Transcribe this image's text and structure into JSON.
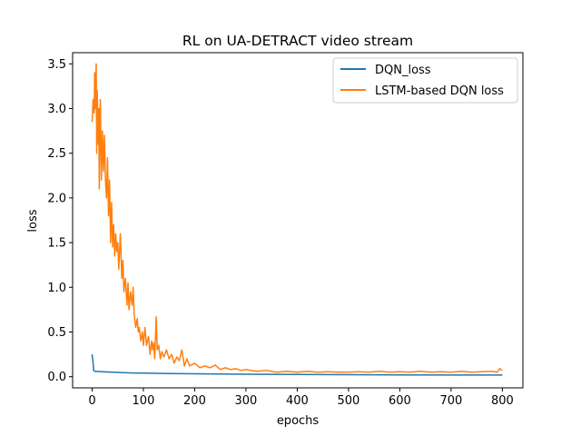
{
  "chart_data": {
    "type": "line",
    "title": "RL on UA-DETRACT video stream",
    "xlabel": "epochs",
    "ylabel": "loss",
    "xlim": [
      -38,
      840
    ],
    "ylim": [
      -0.125,
      3.625
    ],
    "xticks": [
      0,
      100,
      200,
      300,
      400,
      500,
      600,
      700,
      800
    ],
    "yticks": [
      0.0,
      0.5,
      1.0,
      1.5,
      2.0,
      2.5,
      3.0,
      3.5
    ],
    "ytick_labels": [
      "0.0",
      "0.5",
      "1.0",
      "1.5",
      "2.0",
      "2.5",
      "3.0",
      "3.5"
    ],
    "grid": false,
    "legend_position": "top-right",
    "series": [
      {
        "name": "DQN_loss",
        "color": "#1f77b4",
        "points": [
          [
            0,
            0.25
          ],
          [
            2,
            0.15
          ],
          [
            3,
            0.07
          ],
          [
            5,
            0.06
          ],
          [
            10,
            0.058
          ],
          [
            20,
            0.055
          ],
          [
            40,
            0.05
          ],
          [
            60,
            0.045
          ],
          [
            80,
            0.042
          ],
          [
            100,
            0.04
          ],
          [
            150,
            0.035
          ],
          [
            200,
            0.032
          ],
          [
            250,
            0.03
          ],
          [
            300,
            0.027
          ],
          [
            400,
            0.025
          ],
          [
            500,
            0.022
          ],
          [
            600,
            0.02
          ],
          [
            700,
            0.019
          ],
          [
            800,
            0.018
          ]
        ]
      },
      {
        "name": "LSTM-based DQN loss",
        "color": "#ff7f0e",
        "points": [
          [
            0,
            2.85
          ],
          [
            2,
            3.1
          ],
          [
            4,
            2.95
          ],
          [
            5,
            3.4
          ],
          [
            6,
            3.0
          ],
          [
            8,
            3.5
          ],
          [
            9,
            2.5
          ],
          [
            10,
            3.2
          ],
          [
            12,
            2.6
          ],
          [
            13,
            3.0
          ],
          [
            14,
            2.1
          ],
          [
            15,
            2.8
          ],
          [
            16,
            3.1
          ],
          [
            18,
            2.2
          ],
          [
            20,
            2.75
          ],
          [
            22,
            2.3
          ],
          [
            24,
            2.7
          ],
          [
            26,
            2.2
          ],
          [
            28,
            2.0
          ],
          [
            30,
            2.45
          ],
          [
            32,
            1.8
          ],
          [
            34,
            2.2
          ],
          [
            36,
            1.5
          ],
          [
            38,
            1.95
          ],
          [
            40,
            1.45
          ],
          [
            42,
            1.7
          ],
          [
            44,
            1.35
          ],
          [
            46,
            1.6
          ],
          [
            48,
            1.4
          ],
          [
            50,
            1.5
          ],
          [
            52,
            1.2
          ],
          [
            55,
            1.6
          ],
          [
            58,
            1.1
          ],
          [
            60,
            1.3
          ],
          [
            62,
            0.95
          ],
          [
            65,
            1.1
          ],
          [
            68,
            0.8
          ],
          [
            70,
            1.05
          ],
          [
            72,
            0.75
          ],
          [
            75,
            0.95
          ],
          [
            78,
            0.8
          ],
          [
            80,
            1.0
          ],
          [
            82,
            0.7
          ],
          [
            85,
            0.55
          ],
          [
            88,
            0.65
          ],
          [
            90,
            0.5
          ],
          [
            92,
            0.55
          ],
          [
            95,
            0.4
          ],
          [
            98,
            0.5
          ],
          [
            100,
            0.35
          ],
          [
            103,
            0.55
          ],
          [
            106,
            0.35
          ],
          [
            110,
            0.45
          ],
          [
            113,
            0.25
          ],
          [
            116,
            0.4
          ],
          [
            118,
            0.3
          ],
          [
            120,
            0.38
          ],
          [
            122,
            0.2
          ],
          [
            125,
            0.67
          ],
          [
            127,
            0.3
          ],
          [
            130,
            0.35
          ],
          [
            133,
            0.2
          ],
          [
            136,
            0.28
          ],
          [
            140,
            0.22
          ],
          [
            145,
            0.3
          ],
          [
            150,
            0.2
          ],
          [
            155,
            0.25
          ],
          [
            160,
            0.15
          ],
          [
            165,
            0.22
          ],
          [
            170,
            0.18
          ],
          [
            175,
            0.3
          ],
          [
            180,
            0.12
          ],
          [
            185,
            0.2
          ],
          [
            190,
            0.12
          ],
          [
            200,
            0.15
          ],
          [
            210,
            0.1
          ],
          [
            220,
            0.12
          ],
          [
            230,
            0.1
          ],
          [
            240,
            0.13
          ],
          [
            250,
            0.08
          ],
          [
            260,
            0.1
          ],
          [
            270,
            0.08
          ],
          [
            280,
            0.09
          ],
          [
            290,
            0.07
          ],
          [
            300,
            0.08
          ],
          [
            320,
            0.06
          ],
          [
            340,
            0.07
          ],
          [
            360,
            0.05
          ],
          [
            380,
            0.06
          ],
          [
            400,
            0.05
          ],
          [
            420,
            0.06
          ],
          [
            440,
            0.05
          ],
          [
            460,
            0.055
          ],
          [
            480,
            0.05
          ],
          [
            500,
            0.05
          ],
          [
            520,
            0.055
          ],
          [
            540,
            0.05
          ],
          [
            560,
            0.06
          ],
          [
            580,
            0.05
          ],
          [
            600,
            0.055
          ],
          [
            620,
            0.05
          ],
          [
            640,
            0.06
          ],
          [
            660,
            0.05
          ],
          [
            680,
            0.055
          ],
          [
            700,
            0.05
          ],
          [
            720,
            0.06
          ],
          [
            740,
            0.05
          ],
          [
            760,
            0.055
          ],
          [
            780,
            0.06
          ],
          [
            790,
            0.05
          ],
          [
            795,
            0.09
          ],
          [
            800,
            0.07
          ]
        ]
      }
    ]
  }
}
